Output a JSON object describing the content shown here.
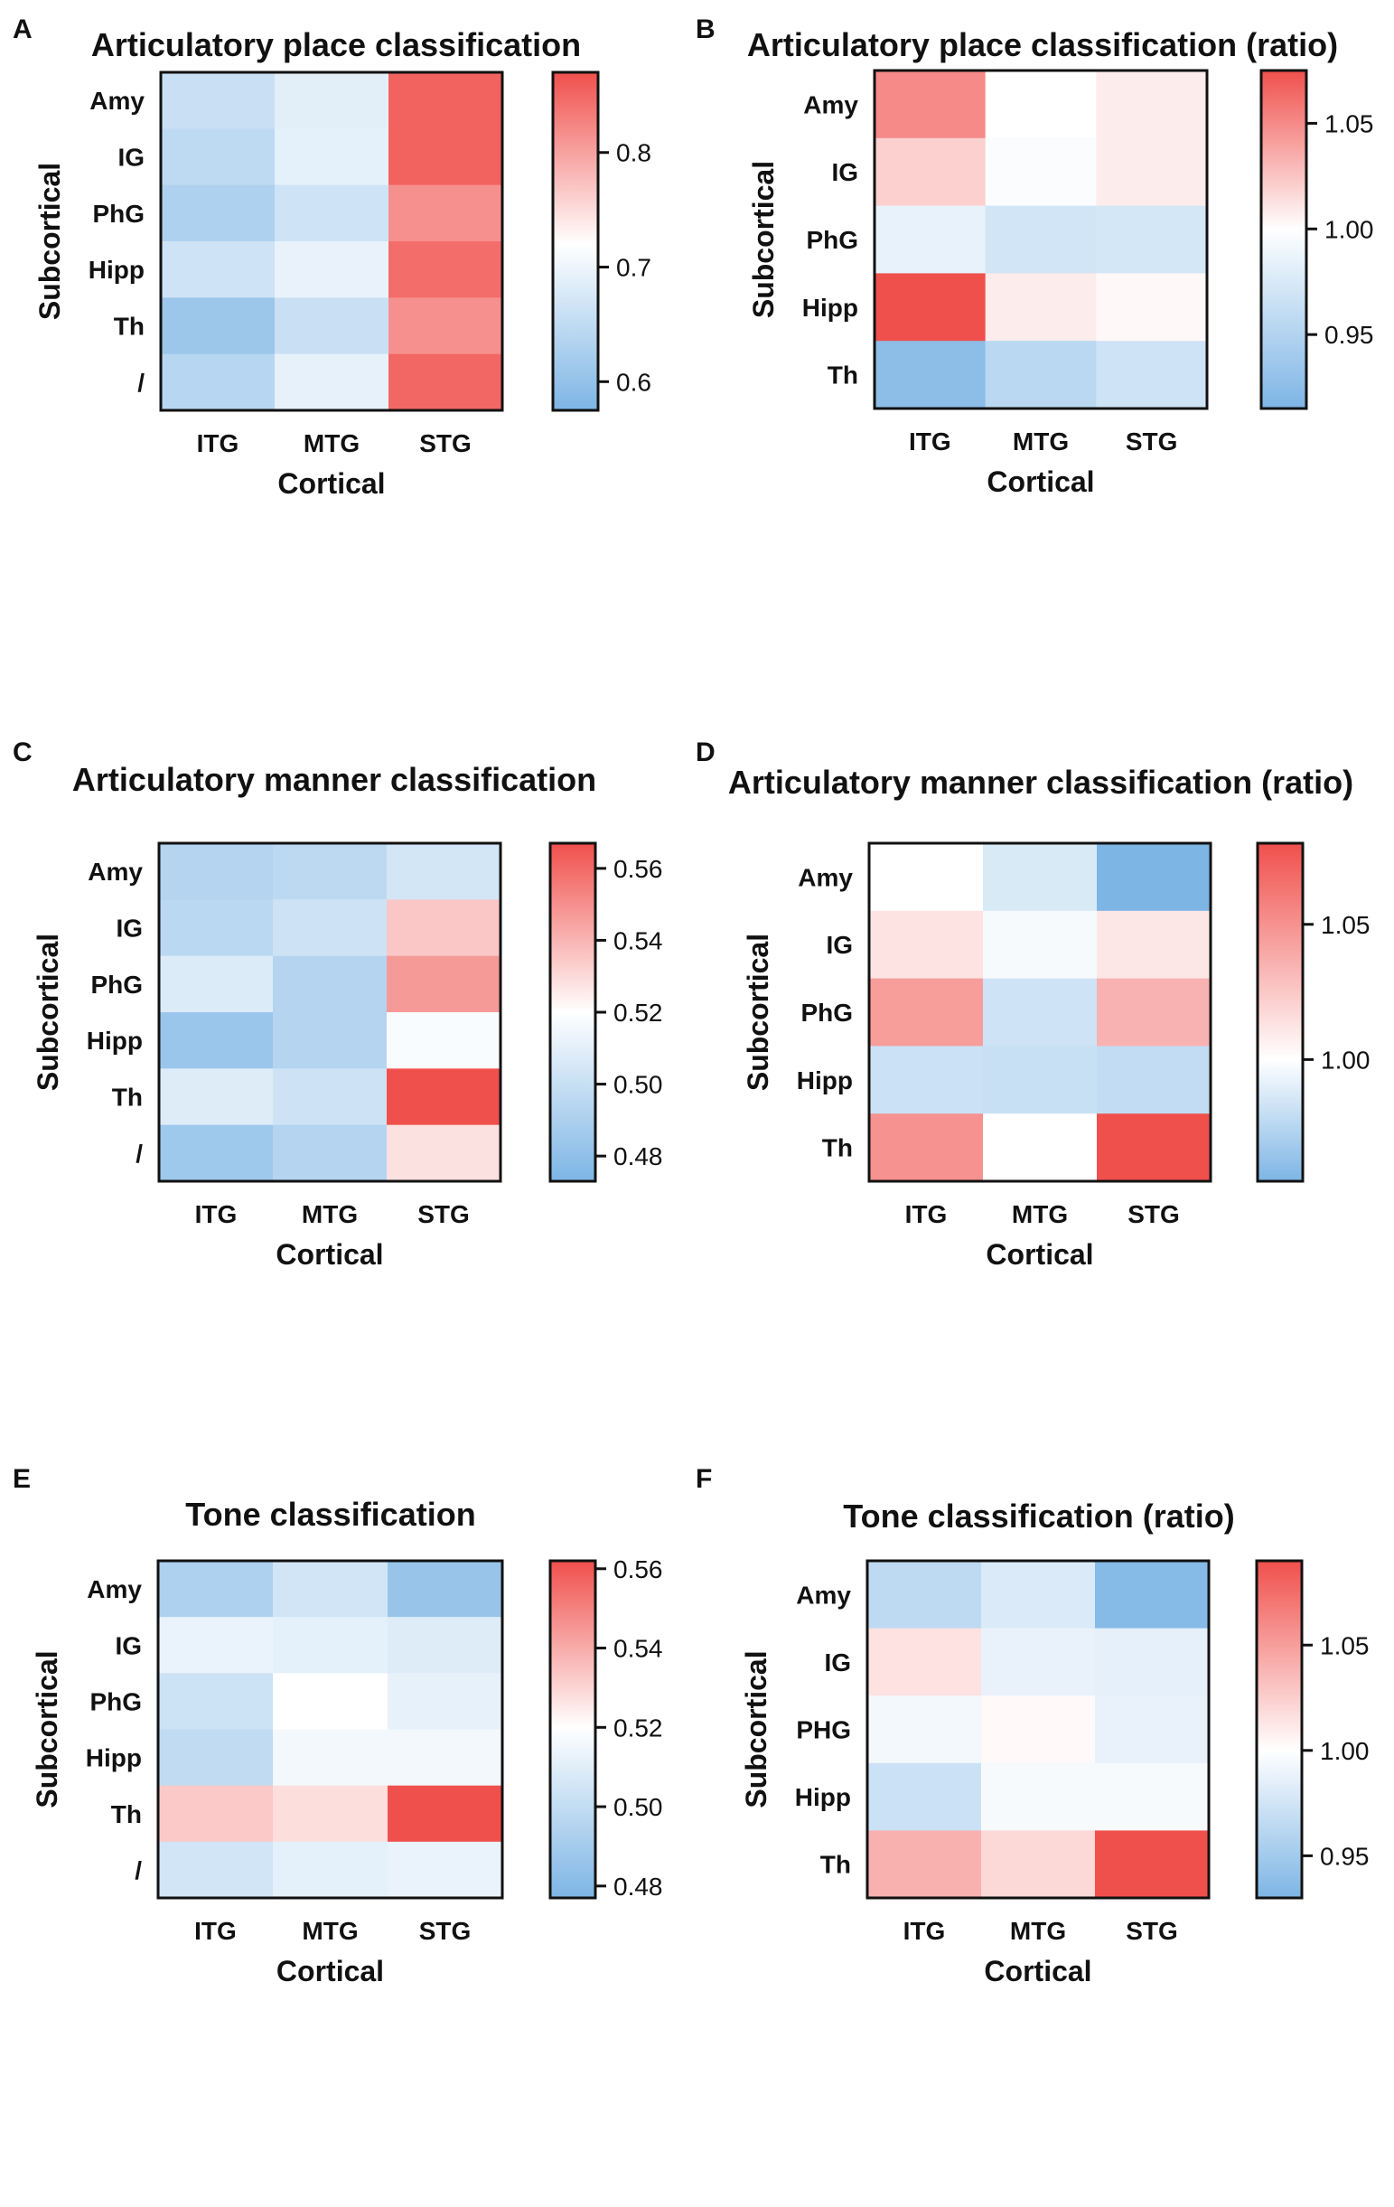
{
  "figure": {
    "colors": {
      "low": "#7db5e5",
      "mid": "#ffffff",
      "high": "#f0504c",
      "axis": "#111111"
    }
  },
  "chart_data": [
    {
      "panel": "A",
      "type": "heatmap",
      "title": "Articulatory place classification",
      "xlabel": "Cortical",
      "ylabel": "Subcortical",
      "x": [
        "ITG",
        "MTG",
        "STG"
      ],
      "y": [
        "Amy",
        "IG",
        "PhG",
        "Hipp",
        "Th",
        "/"
      ],
      "values": [
        [
          0.66,
          0.688,
          0.855
        ],
        [
          0.647,
          0.69,
          0.855
        ],
        [
          0.63,
          0.665,
          0.815
        ],
        [
          0.665,
          0.695,
          0.845
        ],
        [
          0.61,
          0.66,
          0.815
        ],
        [
          0.64,
          0.693,
          0.85
        ]
      ],
      "colorbar": {
        "min": 0.575,
        "max": 0.87,
        "mid": 0.72,
        "ticks": [
          0.6,
          0.7,
          0.8
        ],
        "tick_labels": [
          "0.6",
          "0.7",
          "0.8"
        ]
      }
    },
    {
      "panel": "B",
      "type": "heatmap",
      "title": "Articulatory place classification (ratio)",
      "xlabel": "Cortical",
      "ylabel": "Subcortical",
      "x": [
        "ITG",
        "MTG",
        "STG"
      ],
      "y": [
        "Amy",
        "IG",
        "PhG",
        "Hipp",
        "Th"
      ],
      "values": [
        [
          1.05,
          1.0,
          1.008
        ],
        [
          1.02,
          0.997,
          1.008
        ],
        [
          0.985,
          0.97,
          0.972
        ],
        [
          1.075,
          1.008,
          1.003
        ],
        [
          0.925,
          0.955,
          0.968
        ]
      ],
      "colorbar": {
        "min": 0.915,
        "max": 1.075,
        "mid": 1.0,
        "ticks": [
          0.95,
          1.0,
          1.05
        ],
        "tick_labels": [
          "0.95",
          "1.00",
          "1.05"
        ]
      }
    },
    {
      "panel": "C",
      "type": "heatmap",
      "title": "Articulatory manner classification",
      "xlabel": "Cortical",
      "ylabel": "Subcortical",
      "x": [
        "ITG",
        "MTG",
        "STG"
      ],
      "y": [
        "Amy",
        "IG",
        "PhG",
        "Hipp",
        "Th",
        "/"
      ],
      "values": [
        [
          0.493,
          0.496,
          0.504
        ],
        [
          0.495,
          0.502,
          0.535
        ],
        [
          0.507,
          0.493,
          0.547
        ],
        [
          0.484,
          0.493,
          0.518
        ],
        [
          0.508,
          0.502,
          0.567
        ],
        [
          0.485,
          0.493,
          0.528
        ]
      ],
      "colorbar": {
        "min": 0.473,
        "max": 0.567,
        "mid": 0.52,
        "ticks": [
          0.48,
          0.5,
          0.52,
          0.54,
          0.56
        ],
        "tick_labels": [
          "0.48",
          "0.50",
          "0.52",
          "0.54",
          "0.56"
        ]
      }
    },
    {
      "panel": "D",
      "type": "heatmap",
      "title": "Articulatory manner classification (ratio)",
      "xlabel": "Cortical",
      "ylabel": "Subcortical",
      "x": [
        "ITG",
        "MTG",
        "STG"
      ],
      "y": [
        "Amy",
        "IG",
        "PhG",
        "Hipp",
        "Th"
      ],
      "values": [
        [
          1.0,
          0.987,
          0.955
        ],
        [
          1.013,
          0.997,
          1.011
        ],
        [
          1.045,
          0.983,
          1.035
        ],
        [
          0.982,
          0.981,
          0.979
        ],
        [
          1.05,
          1.0,
          1.08
        ]
      ],
      "colorbar": {
        "min": 0.955,
        "max": 1.08,
        "mid": 1.0,
        "ticks": [
          1.0,
          1.05
        ],
        "tick_labels": [
          "1.00",
          "1.05"
        ]
      }
    },
    {
      "panel": "E",
      "type": "heatmap",
      "title": "Tone classification",
      "xlabel": "Cortical",
      "ylabel": "Subcortical",
      "x": [
        "ITG",
        "MTG",
        "STG"
      ],
      "y": [
        "Amy",
        "IG",
        "PhG",
        "Hipp",
        "Th",
        "/"
      ],
      "values": [
        [
          0.493,
          0.505,
          0.486
        ],
        [
          0.513,
          0.511,
          0.509
        ],
        [
          0.503,
          0.52,
          0.512
        ],
        [
          0.499,
          0.516,
          0.516
        ],
        [
          0.533,
          0.528,
          0.562
        ],
        [
          0.505,
          0.511,
          0.513
        ]
      ],
      "colorbar": {
        "min": 0.477,
        "max": 0.562,
        "mid": 0.52,
        "ticks": [
          0.48,
          0.5,
          0.52,
          0.54,
          0.56
        ],
        "tick_labels": [
          "0.48",
          "0.50",
          "0.52",
          "0.54",
          "0.56"
        ]
      }
    },
    {
      "panel": "F",
      "type": "heatmap",
      "title": "Tone classification (ratio)",
      "xlabel": "Cortical",
      "ylabel": "Subcortical",
      "x": [
        "ITG",
        "MTG",
        "STG"
      ],
      "y": [
        "Amy",
        "IG",
        "PHG",
        "Hipp",
        "Th"
      ],
      "values": [
        [
          0.965,
          0.98,
          0.935
        ],
        [
          1.015,
          0.988,
          0.986
        ],
        [
          0.993,
          1.003,
          0.988
        ],
        [
          0.972,
          0.995,
          0.995
        ],
        [
          1.04,
          1.02,
          1.09
        ]
      ],
      "colorbar": {
        "min": 0.93,
        "max": 1.09,
        "mid": 1.0,
        "ticks": [
          0.95,
          1.0,
          1.05
        ],
        "tick_labels": [
          "0.95",
          "1.00",
          "1.05"
        ]
      }
    }
  ]
}
